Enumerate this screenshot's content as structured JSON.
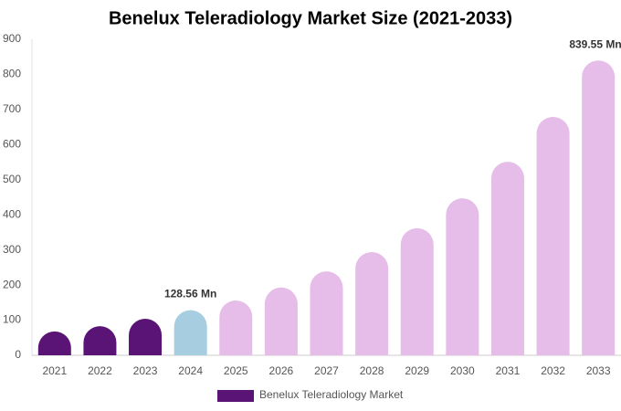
{
  "chart_data": {
    "type": "bar",
    "title": "Benelux Teleradiology Market Size (2021-2033)",
    "categories": [
      "2021",
      "2022",
      "2023",
      "2024",
      "2025",
      "2026",
      "2027",
      "2028",
      "2029",
      "2030",
      "2031",
      "2032",
      "2033"
    ],
    "series": [
      {
        "name": "Benelux Teleradiology Market",
        "color": "#5a1475",
        "bar_colors": [
          "#5a1475",
          "#5a1475",
          "#5a1475",
          "#a6cde0",
          "#e6bde8",
          "#e6bde8",
          "#e6bde8",
          "#e6bde8",
          "#e6bde8",
          "#e6bde8",
          "#e6bde8",
          "#e6bde8",
          "#e6bde8"
        ],
        "values": [
          68,
          83,
          104,
          128.56,
          156,
          193,
          239,
          294,
          362,
          447,
          551,
          679,
          839.55
        ],
        "value_labels": [
          null,
          null,
          null,
          "128.56 Mn",
          null,
          null,
          null,
          null,
          null,
          null,
          null,
          null,
          "839.55 Mn"
        ]
      }
    ],
    "ylim": [
      0,
      900
    ],
    "yticks": [
      0,
      100,
      200,
      300,
      400,
      500,
      600,
      700,
      800,
      900
    ],
    "grid": false
  }
}
